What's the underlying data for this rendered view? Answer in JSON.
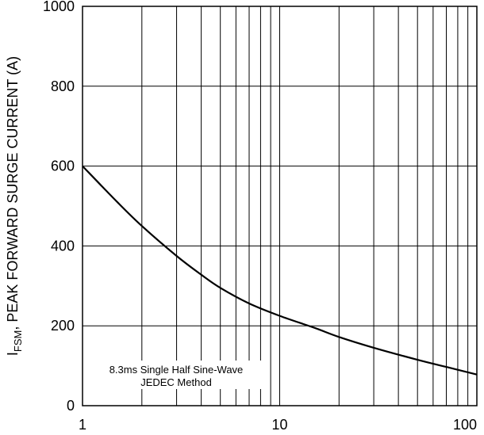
{
  "chart_data": {
    "type": "line",
    "title": "",
    "xlabel": "",
    "ylabel": {
      "symbol": "I",
      "subscript": "FSM",
      "text": ", PEAK FORWARD SURGE CURRENT (A)"
    },
    "x_scale": "log",
    "xlim": [
      1,
      100
    ],
    "ylim": [
      0,
      1000
    ],
    "x_ticks": [
      "1",
      "10",
      "100"
    ],
    "y_ticks": [
      "0",
      "200",
      "400",
      "600",
      "800",
      "1000"
    ],
    "grid": true,
    "annotation": [
      "8.3ms Single Half Sine-Wave",
      "JEDEC Method"
    ],
    "series": [
      {
        "x": [
          1,
          1.5,
          2,
          3,
          4,
          5,
          7,
          10,
          15,
          20,
          30,
          50,
          70,
          100
        ],
        "y": [
          600,
          510,
          450,
          375,
          328,
          295,
          256,
          225,
          195,
          172,
          145,
          115,
          97,
          78
        ]
      }
    ],
    "colors": {
      "line": "#000000",
      "grid": "#000000",
      "background": "#ffffff"
    }
  }
}
